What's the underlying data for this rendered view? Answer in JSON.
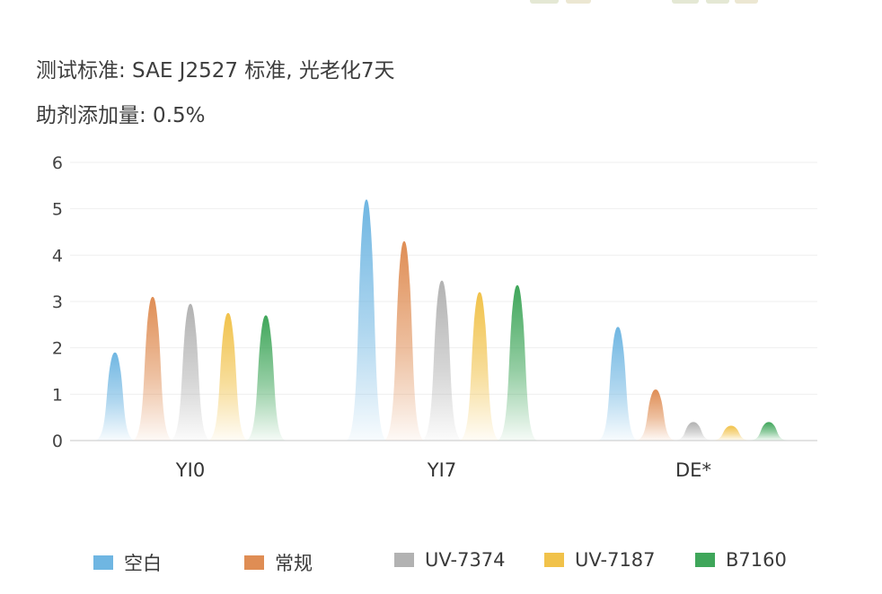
{
  "header": {
    "standard": "测试标准: SAE J2527 标准, 光老化7天",
    "dosage": "助剂添加量: 0.5%"
  },
  "colors": {
    "top_decoration": [
      "#e4e8d4",
      "#ece7d2",
      "#e4e8d4"
    ]
  },
  "chart_data": {
    "type": "bar",
    "categories": [
      "YI0",
      "YI7",
      "DE*"
    ],
    "ylim": [
      0,
      6
    ],
    "yticks": [
      "0",
      "1",
      "2",
      "3",
      "4",
      "5",
      "6"
    ],
    "grid": true,
    "legend_position": "bottom",
    "series": [
      {
        "name": "空白",
        "color": "#6fb6e2",
        "values": [
          1.9,
          5.2,
          2.45
        ]
      },
      {
        "name": "常规",
        "color": "#df8d54",
        "values": [
          3.1,
          4.3,
          1.1
        ]
      },
      {
        "name": "UV-7374",
        "color": "#b2b2b2",
        "values": [
          2.95,
          3.45,
          0.4
        ]
      },
      {
        "name": "UV-7187",
        "color": "#f1c24a",
        "values": [
          2.75,
          3.2,
          0.32
        ]
      },
      {
        "name": "B7160",
        "color": "#3fa65a",
        "values": [
          2.7,
          3.35,
          0.4
        ]
      }
    ]
  }
}
